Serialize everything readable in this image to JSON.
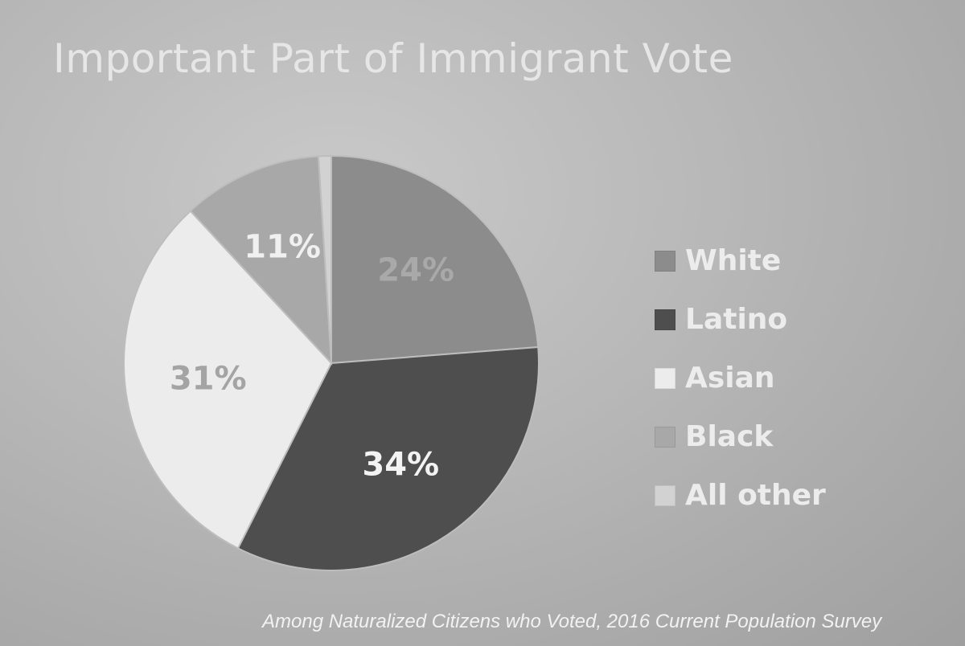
{
  "chart_data": {
    "type": "pie",
    "title": "Important Part of Immigrant Vote",
    "categories": [
      "White",
      "Latino",
      "Asian",
      "Black",
      "All other"
    ],
    "values": [
      24,
      34,
      31,
      11,
      1
    ],
    "labels": [
      "24%",
      "34%",
      "31%",
      "11%",
      ""
    ],
    "colors": [
      "#8c8c8c",
      "#4e4e4e",
      "#ececec",
      "#a8a8a8",
      "#d2d2d2"
    ],
    "label_colors": [
      "#a9a9a9",
      "#f3f3f3",
      "#a4a4a4",
      "#f0f0f0",
      "#ffffff"
    ],
    "legend": {
      "position": "right",
      "items": [
        "White",
        "Latino",
        "Asian",
        "Black",
        "All other"
      ]
    },
    "footnote": "Among Naturalized Citizens who Voted, 2016 Current Population Survey"
  }
}
